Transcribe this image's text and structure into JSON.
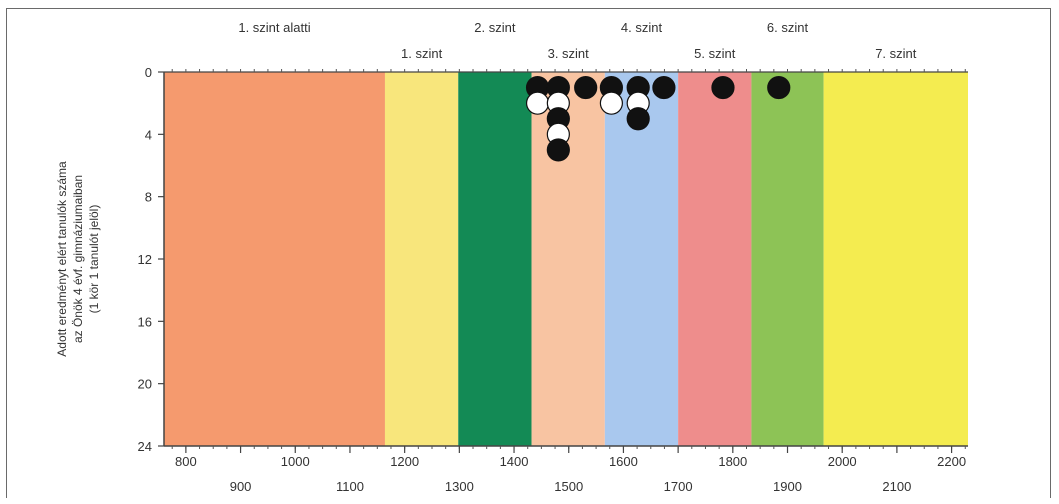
{
  "chart_data": {
    "type": "scatter",
    "title": "",
    "xlabel": "",
    "ylabel_lines": [
      "Adott eredményt elért tanulók száma",
      "az Önök 4 évf. gimnáziumaiban",
      "(1 kör 1 tanulót jelöl)"
    ],
    "xlim": [
      760,
      2230
    ],
    "ylim": [
      0,
      24
    ],
    "y_reversed": true,
    "x_ticks_row1": [
      800,
      1000,
      1200,
      1400,
      1600,
      1800,
      2000,
      2200
    ],
    "x_ticks_row2": [
      900,
      1100,
      1300,
      1500,
      1700,
      1900,
      2100
    ],
    "y_ticks": [
      0,
      4,
      8,
      12,
      16,
      20,
      24
    ],
    "bands": [
      {
        "name": "1. szint alatti",
        "from": 760,
        "to": 1164,
        "color": "#f59a6e"
      },
      {
        "name": "1. szint",
        "from": 1164,
        "to": 1298,
        "color": "#f8e67c"
      },
      {
        "name": "2. szint",
        "from": 1298,
        "to": 1432,
        "color": "#138a55"
      },
      {
        "name": "3. szint",
        "from": 1432,
        "to": 1566,
        "color": "#f8c4a2"
      },
      {
        "name": "4. szint",
        "from": 1566,
        "to": 1700,
        "color": "#a9c8ee"
      },
      {
        "name": "5. szint",
        "from": 1700,
        "to": 1834,
        "color": "#ee8d8c"
      },
      {
        "name": "6. szint",
        "from": 1834,
        "to": 1966,
        "color": "#8dc356"
      },
      {
        "name": "7. szint",
        "from": 1966,
        "to": 2230,
        "color": "#f4ec50"
      }
    ],
    "band_labels_top": [
      "1. szint alatti",
      "2. szint",
      "4. szint",
      "6. szint"
    ],
    "band_labels_bottom": [
      "1. szint",
      "3. szint",
      "5. szint",
      "7. szint"
    ],
    "points": [
      {
        "x": 1443,
        "y": 1,
        "fill": "black"
      },
      {
        "x": 1443,
        "y": 2,
        "fill": "white"
      },
      {
        "x": 1481,
        "y": 1,
        "fill": "black"
      },
      {
        "x": 1481,
        "y": 2,
        "fill": "white"
      },
      {
        "x": 1481,
        "y": 3,
        "fill": "black"
      },
      {
        "x": 1481,
        "y": 4,
        "fill": "white"
      },
      {
        "x": 1481,
        "y": 5,
        "fill": "black"
      },
      {
        "x": 1531,
        "y": 1,
        "fill": "black"
      },
      {
        "x": 1578,
        "y": 1,
        "fill": "black"
      },
      {
        "x": 1578,
        "y": 2,
        "fill": "white"
      },
      {
        "x": 1627,
        "y": 1,
        "fill": "black"
      },
      {
        "x": 1627,
        "y": 2,
        "fill": "white"
      },
      {
        "x": 1627,
        "y": 3,
        "fill": "black"
      },
      {
        "x": 1674,
        "y": 1,
        "fill": "black"
      },
      {
        "x": 1782,
        "y": 1,
        "fill": "black"
      },
      {
        "x": 1884,
        "y": 1,
        "fill": "black"
      }
    ],
    "grid": false
  }
}
